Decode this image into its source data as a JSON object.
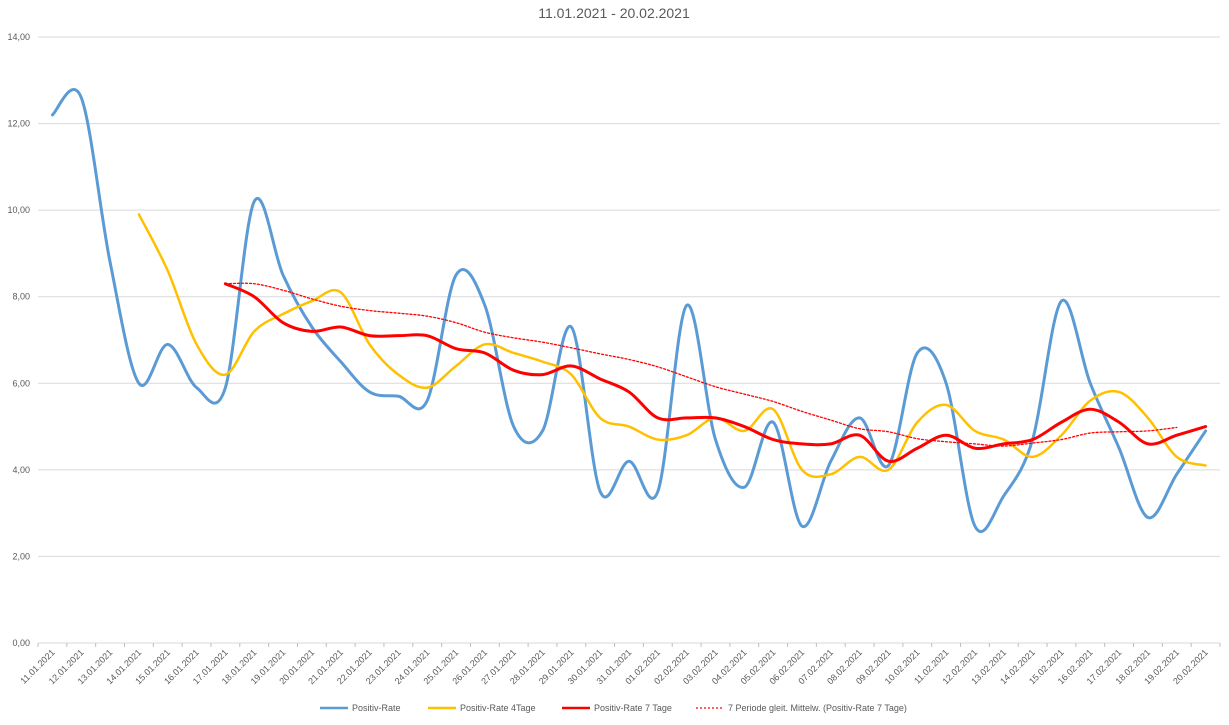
{
  "chart_data": {
    "type": "line",
    "title": "11.01.2021 - 20.02.2021",
    "xlabel": "",
    "ylabel": "",
    "ylim": [
      0,
      14
    ],
    "y_ticks": [
      "0,00",
      "2,00",
      "4,00",
      "6,00",
      "8,00",
      "10,00",
      "12,00",
      "14,00"
    ],
    "grid": "horizontal",
    "legend_position": "bottom",
    "categories": [
      "11.01.2021",
      "12.01.2021",
      "13.01.2021",
      "14.01.2021",
      "15.01.2021",
      "16.01.2021",
      "17.01.2021",
      "18.01.2021",
      "19.01.2021",
      "20.01.2021",
      "21.01.2021",
      "22.01.2021",
      "23.01.2021",
      "24.01.2021",
      "25.01.2021",
      "26.01.2021",
      "27.01.2021",
      "28.01.2021",
      "29.01.2021",
      "30.01.2021",
      "31.01.2021",
      "01.02.2021",
      "02.02.2021",
      "03.02.2021",
      "04.02.2021",
      "05.02.2021",
      "06.02.2021",
      "07.02.2021",
      "08.02.2021",
      "09.02.2021",
      "10.02.2021",
      "11.02.2021",
      "12.02.2021",
      "13.02.2021",
      "14.02.2021",
      "15.02.2021",
      "16.02.2021",
      "17.02.2021",
      "18.02.2021",
      "19.02.2021",
      "20.02.2021"
    ],
    "series": [
      {
        "name": "Positiv-Rate",
        "color": "#5b9bd5",
        "style": "solid",
        "values": [
          12.2,
          12.6,
          8.8,
          6.0,
          6.9,
          5.9,
          5.9,
          10.2,
          8.5,
          7.3,
          6.5,
          5.8,
          5.7,
          5.6,
          8.5,
          7.8,
          5.0,
          4.9,
          7.3,
          3.5,
          4.2,
          3.5,
          7.8,
          4.7,
          3.6,
          5.1,
          2.7,
          4.2,
          5.2,
          4.1,
          6.7,
          6.0,
          2.7,
          3.4,
          4.7,
          7.9,
          6.0,
          4.5,
          2.9,
          3.9,
          4.9
        ]
      },
      {
        "name": "Positiv-Rate 4Tage",
        "color": "#ffc000",
        "style": "solid",
        "values": [
          null,
          null,
          null,
          9.9,
          8.6,
          6.9,
          6.2,
          7.2,
          7.6,
          7.9,
          8.1,
          6.9,
          6.2,
          5.9,
          6.4,
          6.9,
          6.7,
          6.5,
          6.2,
          5.2,
          5.0,
          4.7,
          4.8,
          5.2,
          4.9,
          5.4,
          4.0,
          3.9,
          4.3,
          4.0,
          5.1,
          5.5,
          4.9,
          4.7,
          4.3,
          4.8,
          5.6,
          5.8,
          5.2,
          4.3,
          4.1
        ]
      },
      {
        "name": "Positiv-Rate 7 Tage",
        "color": "#ff0000",
        "style": "solid",
        "values": [
          null,
          null,
          null,
          null,
          null,
          null,
          8.3,
          8.0,
          7.4,
          7.2,
          7.3,
          7.1,
          7.1,
          7.1,
          6.8,
          6.7,
          6.3,
          6.2,
          6.4,
          6.1,
          5.8,
          5.2,
          5.2,
          5.2,
          5.0,
          4.7,
          4.6,
          4.6,
          4.8,
          4.2,
          4.5,
          4.8,
          4.5,
          4.6,
          4.7,
          5.1,
          5.4,
          5.1,
          4.6,
          4.8,
          5.0
        ]
      },
      {
        "name": "7 Periode gleit. Mittelw. (Positiv-Rate 7 Tage)",
        "color": "#ff0000",
        "style": "dotted",
        "values": [
          null,
          null,
          null,
          null,
          null,
          null,
          null,
          null,
          null,
          null,
          null,
          null,
          8.3,
          null,
          null,
          null,
          null,
          null,
          null,
          null,
          null,
          null,
          null,
          null,
          null,
          null,
          null,
          null,
          null,
          null,
          null,
          null,
          null,
          null,
          null,
          null,
          null,
          null,
          null,
          null,
          null
        ]
      }
    ]
  }
}
